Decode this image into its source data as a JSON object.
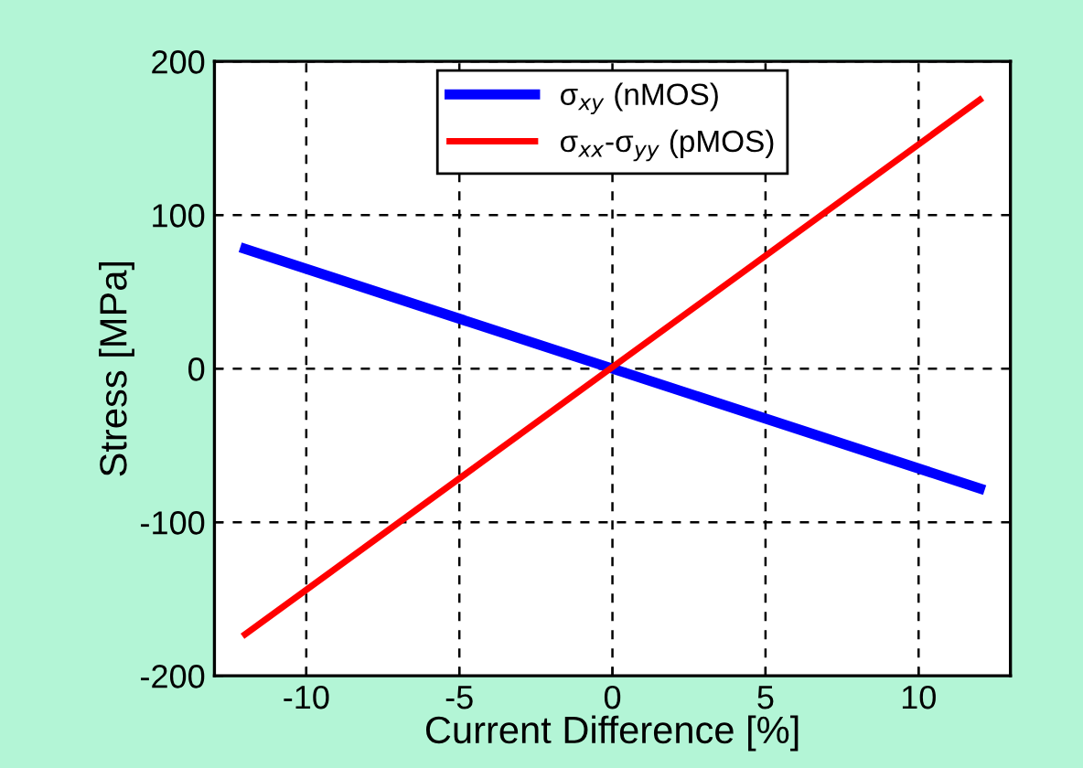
{
  "chart_data": {
    "type": "line",
    "xlabel": "Current Difference [%]",
    "ylabel": "Stress [MPa]",
    "x": [
      -12,
      12
    ],
    "series": [
      {
        "name": "σ$_{xy}$ (nMOS)",
        "color": "#0000ff",
        "values": [
          78,
          -78
        ]
      },
      {
        "name": "σ$_{xx}$-σ$_{yy}$ (pMOS)",
        "color": "#ff0000",
        "values": [
          -173,
          175
        ]
      }
    ],
    "xlim": [
      -13,
      13
    ],
    "xticks": [
      {
        "value": -10,
        "label": "-10"
      },
      {
        "value": -5,
        "label": "-5"
      },
      0,
      5,
      10
    ],
    "ylim": [
      -200,
      200
    ],
    "yticks": [
      {
        "value": -200,
        "label": "-200"
      },
      {
        "value": -100,
        "label": "-100"
      },
      0,
      100,
      200
    ],
    "grid": true,
    "legend": "top",
    "line_style": "solid",
    "marker": "none"
  }
}
